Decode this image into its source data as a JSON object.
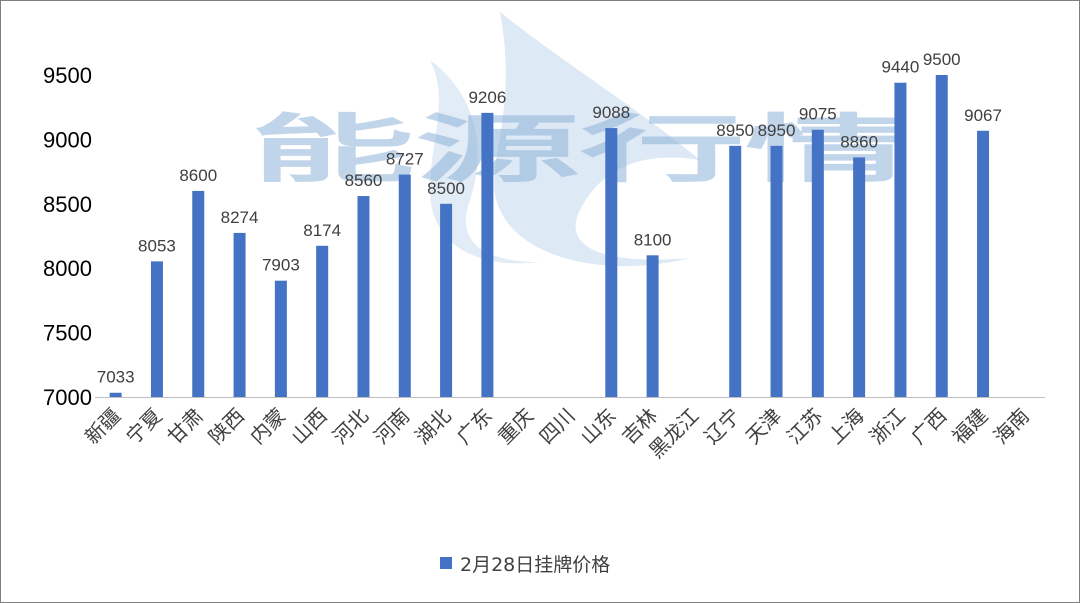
{
  "chart_data": {
    "type": "bar",
    "categories": [
      "新疆",
      "宁夏",
      "甘肃",
      "陕西",
      "内蒙",
      "山西",
      "河北",
      "河南",
      "湖北",
      "广东",
      "重庆",
      "四川",
      "山东",
      "吉林",
      "黑龙江",
      "辽宁",
      "天津",
      "江苏",
      "上海",
      "浙江",
      "广西",
      "福建",
      "海南"
    ],
    "series": [
      {
        "name": "2月28日挂牌价格",
        "values": [
          7033,
          8053,
          8600,
          8274,
          7903,
          8174,
          8560,
          8727,
          8500,
          9206,
          null,
          null,
          9088,
          8100,
          null,
          8950,
          8950,
          9075,
          8860,
          9440,
          9500,
          9067,
          null
        ],
        "color": "#4472c4"
      }
    ],
    "yticks": [
      7000,
      7500,
      8000,
      8500,
      9000,
      9500
    ],
    "ylim": [
      7000,
      9650
    ],
    "grid": false,
    "legend": "bottom-center"
  },
  "watermark": {
    "text": "能源行情",
    "color": "#8fb3d9"
  }
}
